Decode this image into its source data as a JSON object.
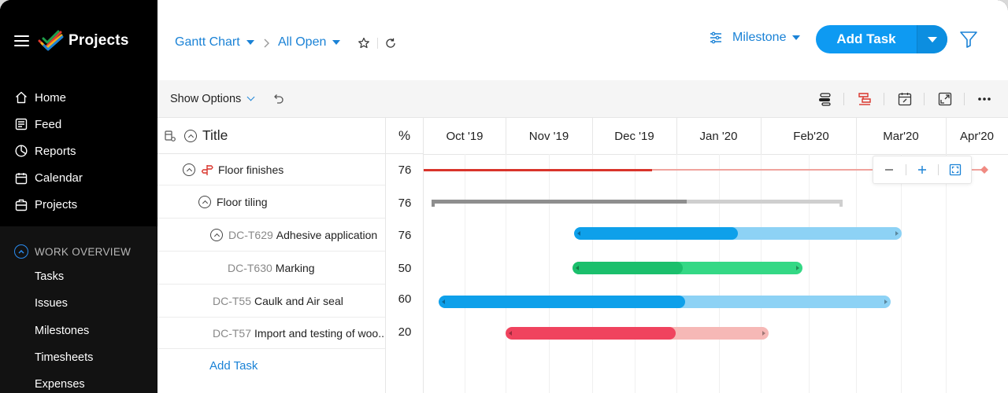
{
  "app": {
    "title": "Projects"
  },
  "sidebar": {
    "nav": [
      {
        "label": "Home",
        "icon": "home-icon"
      },
      {
        "label": "Feed",
        "icon": "feed-icon"
      },
      {
        "label": "Reports",
        "icon": "reports-icon"
      },
      {
        "label": "Calendar",
        "icon": "calendar-icon"
      },
      {
        "label": "Projects",
        "icon": "projects-icon"
      }
    ],
    "section_title": "WORK OVERVIEW",
    "section_items": [
      "Tasks",
      "Issues",
      "Milestones",
      "Timesheets",
      "Expenses"
    ]
  },
  "toolbar": {
    "view": "Gantt Chart",
    "filter": "All Open",
    "group_by": "Milestone",
    "add_task": "Add Task"
  },
  "options": {
    "show_options": "Show Options"
  },
  "table": {
    "title_header": "Title",
    "pct_header": "%",
    "rows": [
      {
        "id": "",
        "name": "Floor finishes",
        "pct": "76"
      },
      {
        "id": "",
        "name": "Floor tiling",
        "pct": "76"
      },
      {
        "id": "DC-T629",
        "name": "Adhesive application",
        "pct": "76"
      },
      {
        "id": "DC-T630",
        "name": "Marking",
        "pct": "50"
      },
      {
        "id": "DC-T55",
        "name": "Caulk and Air seal",
        "pct": "60"
      },
      {
        "id": "DC-T57",
        "name": "Import and testing of woo..",
        "pct": "20"
      }
    ],
    "add_task": "Add Task"
  },
  "timeline": {
    "months": [
      "Oct '19",
      "Nov '19",
      "Dec '19",
      "Jan '20",
      "Feb'20",
      "Mar'20",
      "Apr'20"
    ]
  },
  "colors": {
    "accent": "#0e9af2",
    "milestone_red": "#d9342b",
    "blue_done": "#0ea0ea",
    "blue_rest": "#8dd2f5",
    "green_done": "#1bbf6c",
    "green_rest": "#34d885",
    "red_done": "#f0435e",
    "red_rest": "#f6b8b6",
    "gray_done": "#8e8e8e",
    "gray_rest": "#cfcfcf"
  }
}
